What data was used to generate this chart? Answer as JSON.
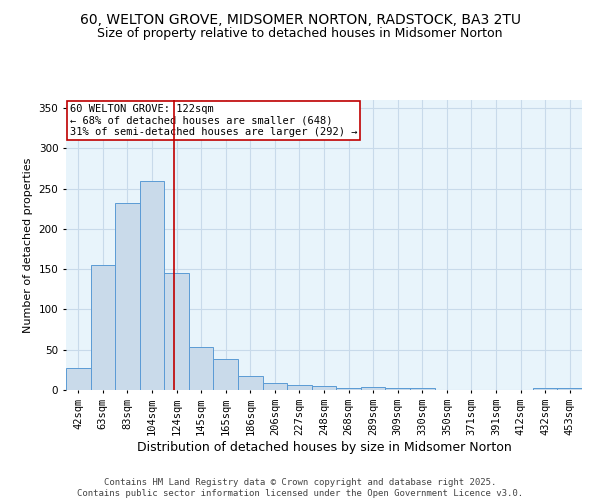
{
  "title1": "60, WELTON GROVE, MIDSOMER NORTON, RADSTOCK, BA3 2TU",
  "title2": "Size of property relative to detached houses in Midsomer Norton",
  "xlabel": "Distribution of detached houses by size in Midsomer Norton",
  "ylabel": "Number of detached properties",
  "bin_labels": [
    "42sqm",
    "63sqm",
    "83sqm",
    "104sqm",
    "124sqm",
    "145sqm",
    "165sqm",
    "186sqm",
    "206sqm",
    "227sqm",
    "248sqm",
    "268sqm",
    "289sqm",
    "309sqm",
    "330sqm",
    "350sqm",
    "371sqm",
    "391sqm",
    "412sqm",
    "432sqm",
    "453sqm"
  ],
  "bar_values": [
    27,
    155,
    232,
    260,
    145,
    53,
    38,
    18,
    9,
    6,
    5,
    2,
    4,
    3,
    2,
    0,
    0,
    0,
    0,
    3,
    3
  ],
  "bar_color": "#c9daea",
  "bar_edge_color": "#5b9bd5",
  "bar_width": 1.0,
  "vline_x": 3.905,
  "vline_color": "#c00000",
  "annotation_text": "60 WELTON GROVE: 122sqm\n← 68% of detached houses are smaller (648)\n31% of semi-detached houses are larger (292) →",
  "annotation_box_color": "white",
  "annotation_box_edge_color": "#c00000",
  "annotation_fontsize": 7.5,
  "ylim": [
    0,
    360
  ],
  "yticks": [
    0,
    50,
    100,
    150,
    200,
    250,
    300,
    350
  ],
  "grid_color": "#c8daea",
  "bg_color": "#e8f4fb",
  "footer_text": "Contains HM Land Registry data © Crown copyright and database right 2025.\nContains public sector information licensed under the Open Government Licence v3.0.",
  "title1_fontsize": 10,
  "title2_fontsize": 9,
  "xlabel_fontsize": 9,
  "ylabel_fontsize": 8,
  "tick_fontsize": 7.5,
  "footer_fontsize": 6.5
}
